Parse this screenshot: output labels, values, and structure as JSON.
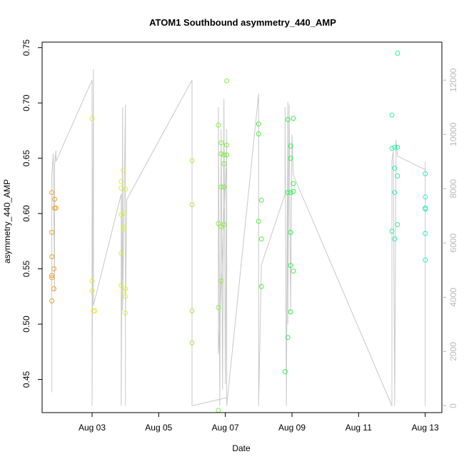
{
  "chart_data": {
    "type": "scatter",
    "title": "ATOM1 Southbound asymmetry_440_AMP",
    "xlabel": "Date",
    "ylabel": "asymmetry_440_AMP",
    "xlim": [
      "2017-08-01T12:00",
      "2017-08-13T12:00"
    ],
    "ylim": [
      0.42,
      0.755
    ],
    "x_ticks": [
      {
        "label": "Aug 03",
        "date": "2017-08-03"
      },
      {
        "label": "Aug 05",
        "date": "2017-08-05"
      },
      {
        "label": "Aug 07",
        "date": "2017-08-07"
      },
      {
        "label": "Aug 09",
        "date": "2017-08-09"
      },
      {
        "label": "Aug 11",
        "date": "2017-08-11"
      },
      {
        "label": "Aug 13",
        "date": "2017-08-13"
      }
    ],
    "y_ticks": [
      0.45,
      0.5,
      0.55,
      0.6,
      0.65,
      0.7,
      0.75
    ],
    "y_tick_labels": [
      "0.45",
      "0.50",
      "0.55",
      "0.60",
      "0.65",
      "0.70",
      "0.75"
    ],
    "y2_ticks": [
      0,
      2000,
      4000,
      6000,
      8000,
      10000,
      12000
    ],
    "y2_tick_labels": [
      "0",
      "2000",
      "4000",
      "6000",
      "8000",
      "10000",
      "12000"
    ],
    "y2lim": [
      -250,
      13400
    ],
    "point_color_note": "points colored by date (orange → yellow → green → cyan)",
    "line_color": "#c8c8c8",
    "groups": [
      {
        "color": "#f0a030",
        "points": [
          [
            "2017-08-01T19:00",
            0.619
          ],
          [
            "2017-08-01T19:00",
            0.583
          ],
          [
            "2017-08-01T19:00",
            0.561
          ],
          [
            "2017-08-01T19:00",
            0.544
          ],
          [
            "2017-08-01T19:00",
            0.542
          ],
          [
            "2017-08-01T19:00",
            0.521
          ],
          [
            "2017-08-01T20:30",
            0.55
          ],
          [
            "2017-08-01T20:30",
            0.532
          ],
          [
            "2017-08-01T21:00",
            0.613
          ],
          [
            "2017-08-01T21:00",
            0.605
          ],
          [
            "2017-08-01T22:00",
            0.605
          ]
        ]
      },
      {
        "color": "#e8e840",
        "points": [
          [
            "2017-08-03T00:00",
            0.686
          ],
          [
            "2017-08-03T00:00",
            0.539
          ],
          [
            "2017-08-03T00:00",
            0.53
          ],
          [
            "2017-08-03T01:00",
            0.512
          ],
          [
            "2017-08-03T02:00",
            0.512
          ]
        ]
      },
      {
        "color": "#d8f040",
        "points": [
          [
            "2017-08-03T21:00",
            0.629
          ],
          [
            "2017-08-03T21:00",
            0.623
          ],
          [
            "2017-08-03T21:00",
            0.599
          ],
          [
            "2017-08-03T21:00",
            0.564
          ],
          [
            "2017-08-03T21:00",
            0.535
          ],
          [
            "2017-08-03T22:30",
            0.639
          ],
          [
            "2017-08-03T22:30",
            0.6
          ],
          [
            "2017-08-03T22:30",
            0.588
          ],
          [
            "2017-08-03T22:30",
            0.586
          ],
          [
            "2017-08-03T22:30",
            0.53
          ],
          [
            "2017-08-04T00:00",
            0.622
          ],
          [
            "2017-08-04T00:00",
            0.532
          ],
          [
            "2017-08-04T00:00",
            0.525
          ],
          [
            "2017-08-04T00:00",
            0.51
          ]
        ]
      },
      {
        "color": "#a6f040",
        "points": [
          [
            "2017-08-06T00:00",
            0.648
          ],
          [
            "2017-08-06T00:00",
            0.608
          ],
          [
            "2017-08-06T00:00",
            0.512
          ],
          [
            "2017-08-06T00:00",
            0.483
          ]
        ]
      },
      {
        "color": "#80f040",
        "points": [
          [
            "2017-08-06T19:00",
            0.68
          ],
          [
            "2017-08-06T19:00",
            0.591
          ],
          [
            "2017-08-06T19:00",
            0.515
          ],
          [
            "2017-08-06T19:00",
            0.422
          ],
          [
            "2017-08-06T21:00",
            0.664
          ],
          [
            "2017-08-06T21:00",
            0.654
          ],
          [
            "2017-08-06T21:00",
            0.624
          ],
          [
            "2017-08-06T21:00",
            0.588
          ],
          [
            "2017-08-06T21:00",
            0.539
          ],
          [
            "2017-08-06T23:00",
            0.645
          ],
          [
            "2017-08-06T23:00",
            0.653
          ],
          [
            "2017-08-06T23:00",
            0.624
          ],
          [
            "2017-08-06T23:00",
            0.59
          ],
          [
            "2017-08-07T01:00",
            0.72
          ],
          [
            "2017-08-07T01:00",
            0.662
          ],
          [
            "2017-08-07T01:00",
            0.653
          ]
        ]
      },
      {
        "color": "#50f040",
        "points": [
          [
            "2017-08-08T00:00",
            0.681
          ],
          [
            "2017-08-08T00:00",
            0.672
          ],
          [
            "2017-08-08T00:00",
            0.593
          ],
          [
            "2017-08-08T02:00",
            0.612
          ],
          [
            "2017-08-08T02:00",
            0.577
          ],
          [
            "2017-08-08T02:00",
            0.534
          ]
        ]
      },
      {
        "color": "#30f050",
        "points": [
          [
            "2017-08-08T19:00",
            0.457
          ],
          [
            "2017-08-08T21:00",
            0.685
          ],
          [
            "2017-08-08T21:00",
            0.619
          ],
          [
            "2017-08-08T21:00",
            0.488
          ],
          [
            "2017-08-08T23:00",
            0.661
          ],
          [
            "2017-08-08T23:00",
            0.65
          ],
          [
            "2017-08-08T23:00",
            0.619
          ],
          [
            "2017-08-08T23:00",
            0.583
          ],
          [
            "2017-08-08T23:00",
            0.553
          ],
          [
            "2017-08-08T23:00",
            0.511
          ],
          [
            "2017-08-09T01:00",
            0.686
          ],
          [
            "2017-08-09T01:00",
            0.627
          ],
          [
            "2017-08-09T01:00",
            0.62
          ],
          [
            "2017-08-09T01:00",
            0.548
          ]
        ]
      },
      {
        "color": "#30f0a0",
        "points": [
          [
            "2017-08-12T00:00",
            0.689
          ],
          [
            "2017-08-12T00:00",
            0.659
          ],
          [
            "2017-08-12T00:00",
            0.584
          ],
          [
            "2017-08-12T02:00",
            0.66
          ],
          [
            "2017-08-12T02:00",
            0.641
          ],
          [
            "2017-08-12T02:00",
            0.619
          ],
          [
            "2017-08-12T02:00",
            0.577
          ],
          [
            "2017-08-12T04:00",
            0.745
          ],
          [
            "2017-08-12T04:00",
            0.66
          ],
          [
            "2017-08-12T04:00",
            0.634
          ],
          [
            "2017-08-12T04:00",
            0.59
          ]
        ]
      },
      {
        "color": "#30f0b0",
        "points": [
          [
            "2017-08-13T00:00",
            0.636
          ],
          [
            "2017-08-13T00:00",
            0.615
          ],
          [
            "2017-08-13T00:00",
            0.605
          ],
          [
            "2017-08-13T00:00",
            0.604
          ],
          [
            "2017-08-13T00:00",
            0.582
          ],
          [
            "2017-08-13T00:00",
            0.558
          ]
        ]
      }
    ],
    "line_segments": [
      [
        "2017-08-01T19:00",
        500
      ],
      [
        "2017-08-01T19:00",
        8500
      ],
      [
        "2017-08-01T20:00",
        9300
      ],
      [
        "2017-08-01T21:00",
        4200
      ],
      [
        "2017-08-01T21:00",
        8900
      ],
      [
        "2017-08-01T22:00",
        9400
      ],
      [
        "2017-08-01T22:00",
        9000
      ],
      [
        "2017-08-03T00:00",
        12000
      ],
      [
        "2017-08-03T00:00",
        11600
      ],
      [
        "2017-08-03T00:00",
        0
      ],
      [
        "2017-08-03T01:00",
        12400
      ],
      [
        "2017-08-03T01:00",
        3700
      ],
      [
        "2017-08-03T21:00",
        7800
      ],
      [
        "2017-08-03T21:00",
        0
      ],
      [
        "2017-08-03T22:00",
        11000
      ],
      [
        "2017-08-03T22:00",
        3500
      ],
      [
        "2017-08-04T00:00",
        11100
      ],
      [
        "2017-08-04T00:00",
        0
      ],
      [
        "2017-08-04T00:00",
        3200
      ],
      [
        "2017-08-04T01:00",
        7600
      ],
      [
        "2017-08-06T00:00",
        12000
      ],
      [
        "2017-08-06T00:00",
        6200
      ],
      [
        "2017-08-06T00:00",
        0
      ],
      [
        "2017-08-07T01:00",
        300
      ],
      [
        "2017-08-07T01:00",
        9400
      ],
      [
        "2017-08-06T19:00",
        1900
      ],
      [
        "2017-08-06T19:00",
        11000
      ],
      [
        "2017-08-06T20:00",
        0
      ],
      [
        "2017-08-06T21:00",
        10200
      ],
      [
        "2017-08-06T22:00",
        600
      ],
      [
        "2017-08-06T23:00",
        11300
      ],
      [
        "2017-08-07T00:00",
        800
      ],
      [
        "2017-08-07T01:00",
        10200
      ],
      [
        "2017-08-07T01:00",
        0
      ],
      [
        "2017-08-08T00:00",
        11500
      ],
      [
        "2017-08-08T00:00",
        4200
      ],
      [
        "2017-08-08T00:00",
        0
      ],
      [
        "2017-08-08T02:00",
        5200
      ],
      [
        "2017-08-08T19:00",
        7800
      ],
      [
        "2017-08-08T19:00",
        11000
      ],
      [
        "2017-08-08T20:00",
        0
      ],
      [
        "2017-08-08T21:00",
        11200
      ],
      [
        "2017-08-08T21:00",
        3000
      ],
      [
        "2017-08-08T22:00",
        11100
      ],
      [
        "2017-08-08T23:00",
        3500
      ],
      [
        "2017-08-09T00:00",
        10000
      ],
      [
        "2017-08-09T01:00",
        8500
      ],
      [
        "2017-08-12T00:00",
        0
      ],
      [
        "2017-08-12T00:00",
        9000
      ],
      [
        "2017-08-12T01:00",
        9400
      ],
      [
        "2017-08-12T02:00",
        0
      ],
      [
        "2017-08-12T03:00",
        9800
      ],
      [
        "2017-08-12T04:00",
        9200
      ],
      [
        "2017-08-13T00:00",
        8700
      ],
      [
        "2017-08-13T00:00",
        0
      ],
      [
        "2017-08-13T00:00",
        2000
      ],
      [
        "2017-08-13T00:00",
        9000
      ]
    ]
  }
}
